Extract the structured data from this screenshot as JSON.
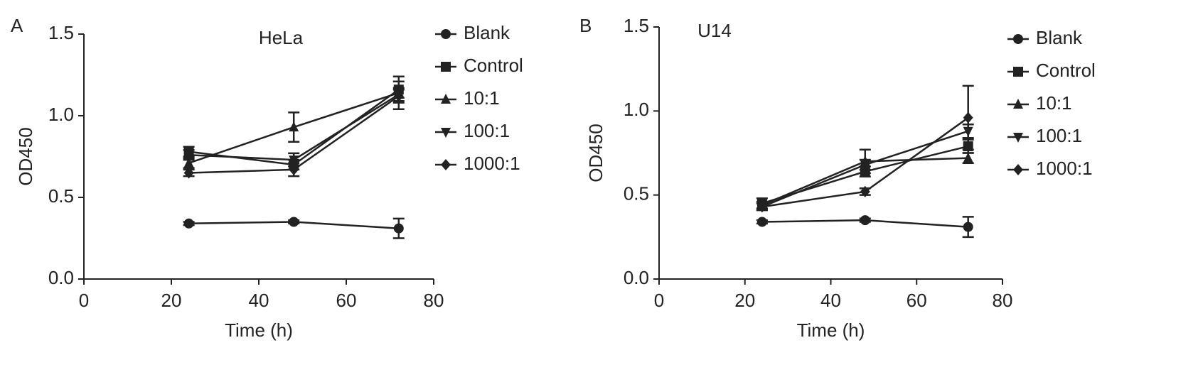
{
  "chart_data": [
    {
      "type": "line",
      "panel": "A",
      "title": "HeLa",
      "x_label": "Time (h)",
      "y_label": "OD450",
      "x": [
        24,
        48,
        72
      ],
      "xlim": [
        0,
        80
      ],
      "xticks": [
        0,
        20,
        40,
        60,
        80
      ],
      "ylim": [
        0,
        1.5
      ],
      "yticks": [
        {
          "value": 0,
          "label": "0.0"
        },
        {
          "value": 0.5,
          "label": "0.5"
        },
        {
          "value": 1,
          "label": "1.0"
        },
        {
          "value": 1.5,
          "label": "1.5"
        }
      ],
      "series": [
        {
          "name": "Blank",
          "color": "#222222",
          "marker": "circle",
          "values": [
            0.34,
            0.35,
            0.31
          ],
          "errors": [
            0.01,
            0.01,
            0.06
          ]
        },
        {
          "name": "Control",
          "color": "#222222",
          "marker": "square",
          "values": [
            0.78,
            0.7,
            1.16
          ],
          "errors": [
            0.03,
            0.03,
            0.05
          ]
        },
        {
          "name": "10:1",
          "color": "#222222",
          "marker": "triangle-up",
          "values": [
            0.71,
            0.93,
            1.14
          ],
          "errors": [
            0.03,
            0.09,
            0.1
          ]
        },
        {
          "name": "100:1",
          "color": "#222222",
          "marker": "triangle-down",
          "values": [
            0.76,
            0.73,
            1.13
          ],
          "errors": [
            0.03,
            0.04,
            0.04
          ]
        },
        {
          "name": "1000:1",
          "color": "#222222",
          "marker": "diamond",
          "values": [
            0.65,
            0.67,
            1.12
          ],
          "errors": [
            0.02,
            0.04,
            0.04
          ]
        }
      ]
    },
    {
      "type": "line",
      "panel": "B",
      "title": "U14",
      "x_label": "Time (h)",
      "y_label": "OD450",
      "x": [
        24,
        48,
        72
      ],
      "xlim": [
        0,
        80
      ],
      "xticks": [
        0,
        20,
        40,
        60,
        80
      ],
      "ylim": [
        0,
        1.5
      ],
      "yticks": [
        {
          "value": 0,
          "label": "0.0"
        },
        {
          "value": 0.5,
          "label": "0.5"
        },
        {
          "value": 1,
          "label": "1.0"
        },
        {
          "value": 1.5,
          "label": "1.5"
        }
      ],
      "series": [
        {
          "name": "Blank",
          "color": "#222222",
          "marker": "circle",
          "values": [
            0.34,
            0.35,
            0.31
          ],
          "errors": [
            0.01,
            0.01,
            0.06
          ]
        },
        {
          "name": "Control",
          "color": "#222222",
          "marker": "square",
          "values": [
            0.45,
            0.64,
            0.79
          ],
          "errors": [
            0.03,
            0.03,
            0.04
          ]
        },
        {
          "name": "10:1",
          "color": "#222222",
          "marker": "triangle-up",
          "values": [
            0.44,
            0.7,
            0.72
          ],
          "errors": [
            0.02,
            0.07,
            0.03
          ]
        },
        {
          "name": "100:1",
          "color": "#222222",
          "marker": "triangle-down",
          "values": [
            0.43,
            0.68,
            0.88
          ],
          "errors": [
            0.02,
            0.03,
            0.04
          ]
        },
        {
          "name": "1000:1",
          "color": "#222222",
          "marker": "diamond",
          "values": [
            0.43,
            0.52,
            0.96
          ],
          "errors": [
            0.02,
            0.02,
            0.19
          ]
        }
      ]
    }
  ]
}
